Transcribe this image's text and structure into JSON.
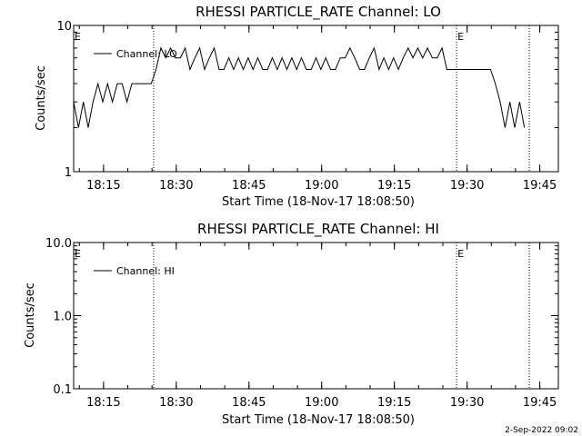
{
  "footer": {
    "timestamp": "2-Sep-2022 09:02"
  },
  "chart_data": [
    {
      "type": "line",
      "title": "RHESSI PARTICLE_RATE Channel: LO",
      "xlabel": "Start Time (18-Nov-17 18:08:50)",
      "ylabel": "Counts/sec",
      "yscale": "log",
      "ylim": [
        1,
        10
      ],
      "xlim_minutes": [
        0,
        100
      ],
      "y_tick_labels": [
        "1",
        "10"
      ],
      "x_tick_labels": [
        "18:15",
        "18:30",
        "18:45",
        "19:00",
        "19:15",
        "19:30",
        "19:45"
      ],
      "legend": {
        "entries": [
          "Channel: LO"
        ],
        "position": "top-left"
      },
      "event_markers": [
        {
          "minute": 16.5,
          "label": "E"
        },
        {
          "minute": 79.0,
          "label": "E"
        },
        {
          "minute": 94.0,
          "label": ""
        }
      ],
      "series": [
        {
          "name": "Channel: LO",
          "x": [
            0,
            1,
            2,
            3,
            4,
            5,
            6,
            7,
            8,
            9,
            10,
            11,
            12,
            13,
            14,
            15,
            16,
            17,
            18,
            19,
            20,
            21,
            22,
            23,
            24,
            25,
            26,
            27,
            28,
            29,
            30,
            31,
            32,
            33,
            34,
            35,
            36,
            37,
            38,
            39,
            40,
            41,
            42,
            43,
            44,
            45,
            46,
            47,
            48,
            49,
            50,
            51,
            52,
            53,
            54,
            55,
            56,
            57,
            58,
            59,
            60,
            61,
            62,
            63,
            64,
            65,
            66,
            67,
            68,
            69,
            70,
            71,
            72,
            73,
            74,
            75,
            76,
            77,
            78,
            79,
            80,
            81,
            82,
            83,
            84,
            85,
            86,
            87,
            88,
            89,
            90,
            91,
            92,
            93
          ],
          "values": [
            3,
            2,
            3,
            2,
            3,
            4,
            3,
            4,
            3,
            4,
            4,
            3,
            4,
            4,
            4,
            4,
            4,
            5,
            7,
            6,
            7,
            6,
            6,
            7,
            5,
            6,
            7,
            5,
            6,
            7,
            5,
            5,
            6,
            5,
            6,
            5,
            6,
            5,
            6,
            5,
            5,
            6,
            5,
            6,
            5,
            6,
            5,
            6,
            5,
            5,
            6,
            5,
            6,
            5,
            5,
            6,
            6,
            7,
            6,
            5,
            5,
            6,
            7,
            5,
            6,
            5,
            6,
            5,
            6,
            7,
            6,
            7,
            6,
            7,
            6,
            6,
            7,
            5,
            5,
            5,
            5,
            5,
            5,
            5,
            5,
            5,
            5,
            4,
            3,
            2,
            3,
            2,
            3,
            2
          ]
        }
      ]
    },
    {
      "type": "line",
      "title": "RHESSI PARTICLE_RATE Channel: HI",
      "xlabel": "Start Time (18-Nov-17 18:08:50)",
      "ylabel": "Counts/sec",
      "yscale": "log",
      "ylim": [
        0.1,
        10
      ],
      "xlim_minutes": [
        0,
        100
      ],
      "y_tick_labels": [
        "0.1",
        "1.0",
        "10.0"
      ],
      "x_tick_labels": [
        "18:15",
        "18:30",
        "18:45",
        "19:00",
        "19:15",
        "19:30",
        "19:45"
      ],
      "legend": {
        "entries": [
          "Channel: HI"
        ],
        "position": "top-left"
      },
      "event_markers": [
        {
          "minute": 16.5,
          "label": "E"
        },
        {
          "minute": 79.0,
          "label": "E"
        },
        {
          "minute": 94.0,
          "label": ""
        }
      ],
      "series": [
        {
          "name": "Channel: HI",
          "x": [],
          "values": []
        }
      ]
    }
  ]
}
